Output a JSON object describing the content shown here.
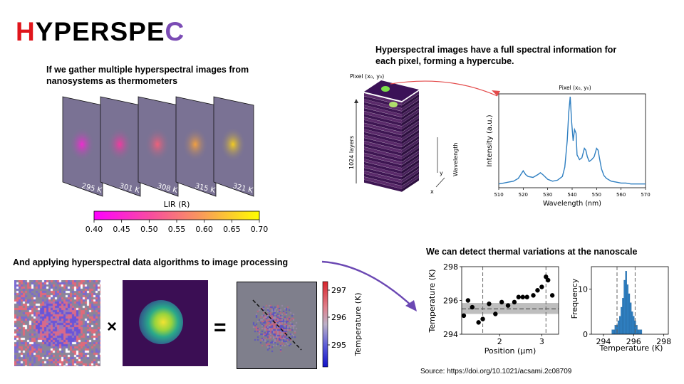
{
  "logo": {
    "first": "H",
    "middle": "YPERSPE",
    "last": "C"
  },
  "captions": {
    "gather": "If we gather multiple hyperspectral images from nanosystems as thermometers",
    "hypercube": "Hyperspectral images have a full spectral information for each pixel, forming a hypercube.",
    "algorithms": "And applying hyperspectral data algorithms to image processing",
    "thermal": "We can detect thermal variations at the nanoscale"
  },
  "source": "Source: https://doi.org/10.1021/acsami.2c08709",
  "thermometer_frames": {
    "labels": [
      "295 K",
      "301 K",
      "308 K",
      "315 K",
      "321 K"
    ],
    "colors": [
      "#ee2ccf",
      "#f03aa0",
      "#f0607a",
      "#f2a040",
      "#f3cc20"
    ]
  },
  "lir_colorbar": {
    "label": "LIR (R)",
    "ticks": [
      "0.40",
      "0.45",
      "0.50",
      "0.55",
      "0.60",
      "0.65",
      "0.70"
    ]
  },
  "hypercube": {
    "pixel_label": "Pixel (x₀, y₀)",
    "layers_label": "1024 layers",
    "wavelength_label": "Wavelength",
    "y_label": "y",
    "x_label": "x"
  },
  "spectrum": {
    "title": "Pixel (x₀, y₀)",
    "xlabel": "Wavelength (nm)",
    "ylabel": "Intensity (a.u.)",
    "xticks": [
      "510",
      "520",
      "530",
      "540",
      "550",
      "560",
      "570"
    ],
    "color": "#2f7fc1"
  },
  "operators": {
    "times": "×",
    "equals": "="
  },
  "temp_colorbar": {
    "label": "Temperature (K)",
    "ticks": [
      "297",
      "296",
      "295"
    ]
  },
  "chart_data": [
    {
      "type": "line",
      "title": "Pixel (x₀, y₀)",
      "xlabel": "Wavelength (nm)",
      "ylabel": "Intensity (a.u.)",
      "xlim": [
        510,
        570
      ],
      "ylim": [
        0,
        1
      ],
      "series": [
        {
          "x": [
            510,
            512,
            514,
            516,
            518,
            519,
            520,
            521,
            522,
            524,
            526,
            527,
            528,
            530,
            532,
            534,
            536,
            537,
            538,
            538.6,
            539.2,
            539.8,
            540.4,
            541,
            541.6,
            542,
            543,
            544,
            545,
            545.6,
            546.2,
            547,
            548,
            549,
            550,
            550.6,
            551.2,
            552,
            553,
            554,
            556,
            558,
            560,
            562,
            564,
            566,
            568,
            570
          ],
          "y": [
            0.04,
            0.05,
            0.06,
            0.07,
            0.1,
            0.14,
            0.18,
            0.14,
            0.12,
            0.11,
            0.14,
            0.16,
            0.14,
            0.09,
            0.07,
            0.08,
            0.12,
            0.22,
            0.5,
            0.8,
            0.97,
            0.7,
            0.5,
            0.62,
            0.58,
            0.35,
            0.3,
            0.32,
            0.42,
            0.4,
            0.33,
            0.28,
            0.3,
            0.33,
            0.42,
            0.4,
            0.31,
            0.2,
            0.13,
            0.1,
            0.07,
            0.06,
            0.05,
            0.05,
            0.04,
            0.04,
            0.04,
            0.04
          ]
        }
      ]
    },
    {
      "type": "scatter",
      "xlabel": "Position (μm)",
      "ylabel": "Temperature (K)",
      "xlim": [
        1.1,
        3.4
      ],
      "ylim": [
        294,
        298
      ],
      "xticks": [
        2,
        3
      ],
      "yticks": [
        294,
        296,
        298
      ],
      "series": [
        {
          "x": [
            1.15,
            1.25,
            1.35,
            1.5,
            1.6,
            1.75,
            1.9,
            2.05,
            2.2,
            2.35,
            2.45,
            2.55,
            2.65,
            2.8,
            2.9,
            3.0,
            3.1,
            3.15,
            3.25
          ],
          "y": [
            295.1,
            296.0,
            295.6,
            294.7,
            294.9,
            295.8,
            295.2,
            295.9,
            295.7,
            295.9,
            296.2,
            296.2,
            296.2,
            296.3,
            296.6,
            296.8,
            297.4,
            297.2,
            296.3
          ]
        }
      ],
      "vlines": [
        1.6,
        3.1
      ],
      "mean_line": 295.5,
      "band": [
        295.2,
        295.85
      ]
    },
    {
      "type": "bar",
      "xlabel": "Temperature (K)",
      "ylabel": "Frequency",
      "xlim": [
        293.2,
        298.3
      ],
      "ylim": [
        0,
        15
      ],
      "xticks": [
        294,
        296,
        298
      ],
      "yticks": [
        0,
        10
      ],
      "x": [
        294.6,
        294.7,
        294.8,
        294.9,
        295.0,
        295.1,
        295.2,
        295.3,
        295.4,
        295.5,
        295.6,
        295.7,
        295.8,
        295.9,
        296.0,
        296.1,
        296.2,
        296.3,
        296.4,
        296.5
      ],
      "values": [
        1,
        1,
        2,
        2,
        3,
        4,
        6,
        8,
        12,
        14,
        11,
        9,
        7,
        5,
        4,
        3,
        2,
        1,
        1,
        1
      ],
      "vlines": [
        294.9,
        296.1
      ]
    }
  ]
}
